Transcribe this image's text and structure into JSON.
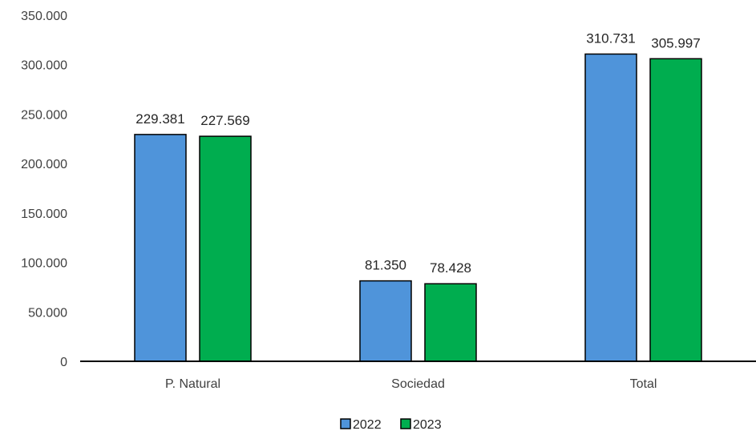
{
  "chart_data": {
    "type": "bar",
    "categories": [
      "P. Natural",
      "Sociedad",
      "Total"
    ],
    "series": [
      {
        "name": "2022",
        "values": [
          229381,
          81350,
          310731
        ],
        "color": "#4F94DA"
      },
      {
        "name": "2023",
        "values": [
          227569,
          78428,
          305997
        ],
        "color": "#00AD4F"
      }
    ],
    "data_labels": [
      [
        "229.381",
        "81.350",
        "310.731"
      ],
      [
        "227.569",
        "78.428",
        "305.997"
      ]
    ],
    "ylim": [
      0,
      350000
    ],
    "yticks": [
      0,
      50000,
      100000,
      150000,
      200000,
      250000,
      300000,
      350000
    ],
    "ytick_labels": [
      "0",
      "50.000",
      "100.000",
      "150.000",
      "200.000",
      "250.000",
      "300.000",
      "350.000"
    ],
    "grid": false,
    "legend_position": "bottom",
    "title": "",
    "xlabel": "",
    "ylabel": ""
  }
}
